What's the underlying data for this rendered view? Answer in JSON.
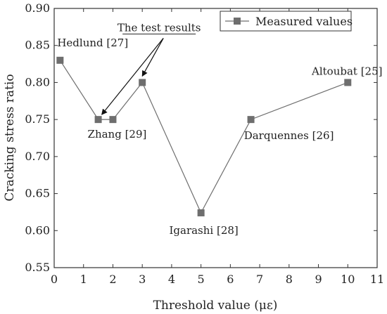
{
  "chart_data": {
    "type": "line",
    "xlabel": "Threshold value (με)",
    "ylabel": "Cracking stress ratio",
    "xlim": [
      0,
      11
    ],
    "ylim": [
      0.55,
      0.9
    ],
    "x_ticks": [
      "0",
      "1",
      "2",
      "3",
      "4",
      "5",
      "6",
      "7",
      "8",
      "9",
      "10",
      "11"
    ],
    "y_ticks": [
      "0.55",
      "0.60",
      "0.65",
      "0.70",
      "0.75",
      "0.80",
      "0.85",
      "0.90"
    ],
    "grid": false,
    "legend_position": "top-right",
    "series": [
      {
        "name": "Measured values",
        "color": "#6e6e6e",
        "marker": "square",
        "x": [
          0.2,
          1.5,
          2.0,
          3.0,
          5.0,
          6.7,
          10.0
        ],
        "y": [
          0.83,
          0.75,
          0.75,
          0.8,
          0.624,
          0.75,
          0.8
        ]
      }
    ],
    "annotations": [
      {
        "text": "Hedlund [27]",
        "x": 0.2,
        "y": 0.83
      },
      {
        "text": "Zhang [29]",
        "x": 2.0,
        "y": 0.75
      },
      {
        "text": "Igarashi [28]",
        "x": 5.0,
        "y": 0.624
      },
      {
        "text": "Darquennes [26]",
        "x": 6.7,
        "y": 0.75
      },
      {
        "text": "Altoubat [25]",
        "x": 10.0,
        "y": 0.8
      },
      {
        "text": "The test results",
        "x": 3.0,
        "y": 0.8
      }
    ]
  }
}
